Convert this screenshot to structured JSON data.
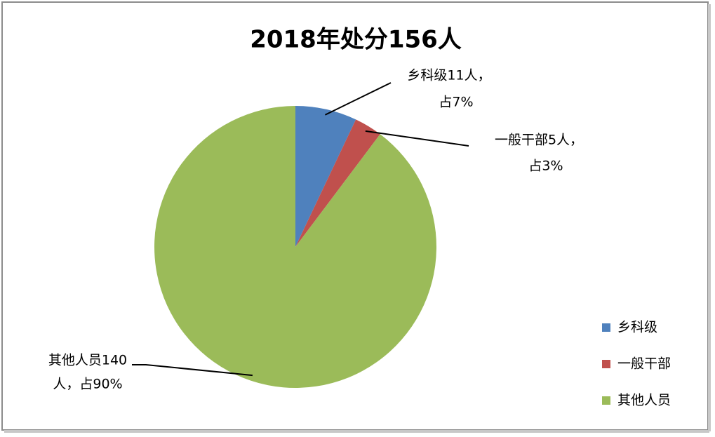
{
  "chart_data": {
    "type": "pie",
    "title": "2018年处分156人",
    "categories": [
      "乡科级",
      "一般干部",
      "其他人员"
    ],
    "values": [
      11,
      5,
      140
    ],
    "value_labels": [
      [
        "乡科级11人，",
        "占7%"
      ],
      [
        "一般干部5人，",
        "占3%"
      ],
      [
        "其他人员140",
        "人，占90%"
      ]
    ],
    "colors": [
      "#4f81bd",
      "#c0504d",
      "#9bbb59"
    ],
    "legend": "right"
  }
}
